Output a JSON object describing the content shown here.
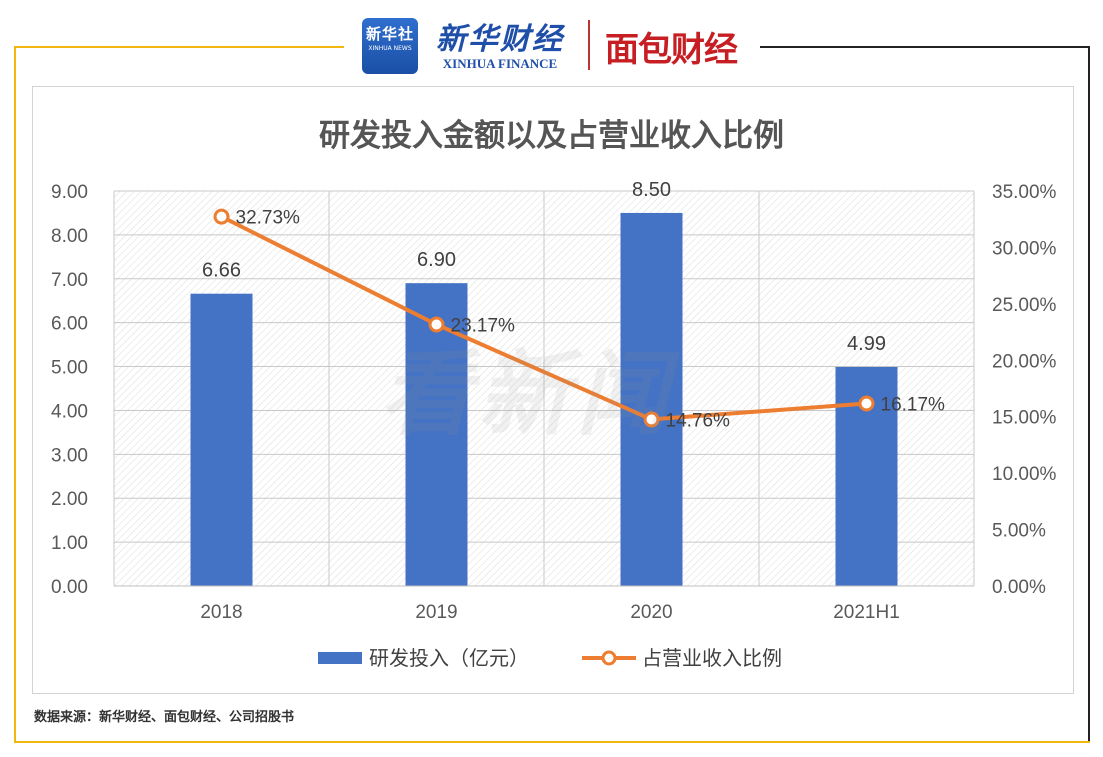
{
  "header": {
    "xinhua_badge_cn": "新华社",
    "xinhua_badge_en": "XINHUA NEWS",
    "xinhua_finance_cn": "新华财经",
    "xinhua_finance_en": "XINHUA FINANCE",
    "mianbao_logo": "面包财经"
  },
  "watermark": "看新闻",
  "source_note": "数据来源：新华财经、面包财经、公司招股书",
  "colors": {
    "bar": "#4472C4",
    "line": "#ED7D31",
    "frame_accent": "#F2B70E"
  },
  "chart_data": {
    "type": "bar",
    "title": "研发投入金额以及占营业收入比例",
    "categories": [
      "2018",
      "2019",
      "2020",
      "2021H1"
    ],
    "series": [
      {
        "name": "研发投入（亿元）",
        "type": "bar",
        "axis": "left",
        "values": [
          6.66,
          6.9,
          8.5,
          4.99
        ],
        "labels": [
          "6.66",
          "6.90",
          "8.50",
          "4.99"
        ]
      },
      {
        "name": "占营业收入比例",
        "type": "line",
        "axis": "right",
        "values": [
          32.73,
          23.17,
          14.76,
          16.17
        ],
        "labels": [
          "32.73%",
          "23.17%",
          "14.76%",
          "16.17%"
        ]
      }
    ],
    "y_left": {
      "ylim": [
        0,
        9
      ],
      "ticks": [
        "0.00",
        "1.00",
        "2.00",
        "3.00",
        "4.00",
        "5.00",
        "6.00",
        "7.00",
        "8.00",
        "9.00"
      ]
    },
    "y_right": {
      "ylim": [
        0,
        35
      ],
      "ticks": [
        "0.00%",
        "5.00%",
        "10.00%",
        "15.00%",
        "20.00%",
        "25.00%",
        "30.00%",
        "35.00%"
      ]
    },
    "grid": true,
    "legend": "bottom"
  }
}
